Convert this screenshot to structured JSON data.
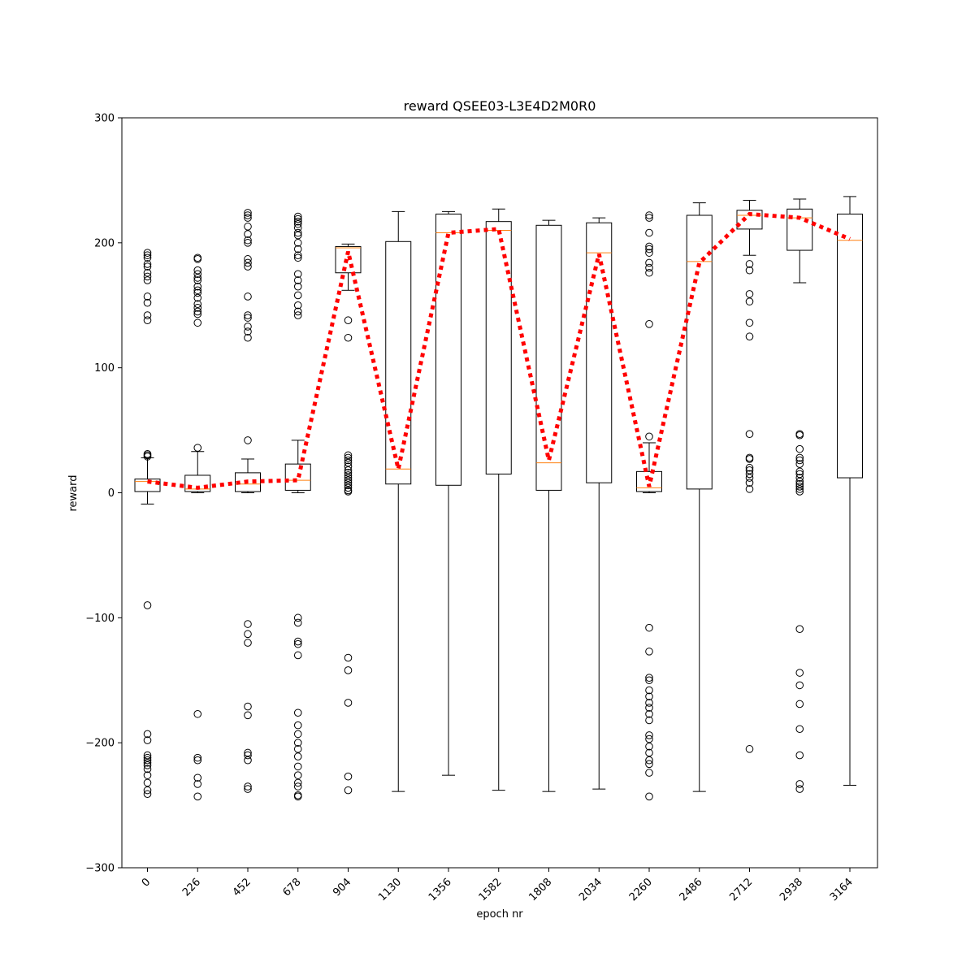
{
  "chart_data": {
    "type": "box",
    "title": "reward QSEE03-L3E4D2M0R0",
    "xlabel": "epoch nr",
    "ylabel": "reward",
    "ylim": [
      -300,
      300
    ],
    "yticks": [
      -300,
      -200,
      -100,
      0,
      100,
      200,
      300
    ],
    "ytick_labels": [
      "−300",
      "−200",
      "−100",
      "0",
      "100",
      "200",
      "300"
    ],
    "categories": [
      "0",
      "226",
      "452",
      "678",
      "904",
      "1130",
      "1356",
      "1582",
      "1808",
      "2034",
      "2260",
      "2486",
      "2712",
      "2938",
      "3164"
    ],
    "xtick_rotation_deg": -45,
    "grid": false,
    "colors": {
      "box": "#000000",
      "median": "#ff7f0e",
      "mean_line": "#ff0000"
    },
    "boxes": [
      {
        "category": "0",
        "whisker_low": -9,
        "q1": 1,
        "median": 9,
        "q3": 11,
        "whisker_high": 28,
        "fliers": [
          192,
          190,
          188,
          183,
          181,
          176,
          173,
          170,
          157,
          152,
          142,
          138,
          31,
          30,
          29,
          -90,
          -193,
          -198,
          -210,
          -212,
          -214,
          -216,
          -218,
          -221,
          -226,
          -232,
          -238,
          -241
        ]
      },
      {
        "category": "226",
        "whisker_low": 0,
        "q1": 1,
        "median": 3,
        "q3": 14,
        "whisker_high": 33,
        "fliers": [
          188,
          187,
          178,
          175,
          172,
          170,
          165,
          162,
          160,
          156,
          151,
          148,
          145,
          143,
          136,
          36,
          -177,
          -212,
          -214,
          -228,
          -233,
          -243
        ]
      },
      {
        "category": "452",
        "whisker_low": 0,
        "q1": 1,
        "median": 7,
        "q3": 16,
        "whisker_high": 27,
        "fliers": [
          224,
          222,
          220,
          213,
          207,
          202,
          200,
          187,
          184,
          181,
          157,
          142,
          140,
          133,
          129,
          124,
          42,
          -105,
          -113,
          -120,
          -171,
          -178,
          -208,
          -210,
          -214,
          -235,
          -237
        ]
      },
      {
        "category": "678",
        "whisker_low": 0,
        "q1": 2,
        "median": 10,
        "q3": 23,
        "whisker_high": 42,
        "fliers": [
          221,
          219,
          217,
          215,
          212,
          208,
          206,
          200,
          195,
          190,
          188,
          175,
          170,
          165,
          158,
          150,
          145,
          142,
          -100,
          -104,
          -119,
          -121,
          -130,
          -176,
          -186,
          -193,
          -200,
          -205,
          -211,
          -219,
          -226,
          -232,
          -235,
          -242,
          -243
        ]
      },
      {
        "category": "904",
        "whisker_low": 162,
        "q1": 176,
        "median": 196,
        "q3": 197,
        "whisker_high": 199,
        "fliers": [
          138,
          124,
          30,
          28,
          26,
          24,
          21,
          18,
          16,
          14,
          12,
          10,
          8,
          6,
          4,
          2,
          1,
          -132,
          -142,
          -168,
          -227,
          -238
        ]
      },
      {
        "category": "1130",
        "whisker_low": -239,
        "q1": 7,
        "median": 19,
        "q3": 201,
        "whisker_high": 225,
        "fliers": []
      },
      {
        "category": "1356",
        "whisker_low": -226,
        "q1": 6,
        "median": 208,
        "q3": 223,
        "whisker_high": 225,
        "fliers": []
      },
      {
        "category": "1582",
        "whisker_low": -238,
        "q1": 15,
        "median": 210,
        "q3": 217,
        "whisker_high": 227,
        "fliers": []
      },
      {
        "category": "1808",
        "whisker_low": -239,
        "q1": 2,
        "median": 24,
        "q3": 214,
        "whisker_high": 218,
        "fliers": []
      },
      {
        "category": "2034",
        "whisker_low": -237,
        "q1": 8,
        "median": 192,
        "q3": 216,
        "whisker_high": 220,
        "fliers": []
      },
      {
        "category": "2260",
        "whisker_low": 0,
        "q1": 1,
        "median": 4,
        "q3": 17,
        "whisker_high": 40,
        "fliers": [
          222,
          220,
          208,
          197,
          195,
          192,
          184,
          180,
          176,
          135,
          45,
          -108,
          -127,
          -148,
          -150,
          -158,
          -163,
          -168,
          -172,
          -177,
          -182,
          -194,
          -197,
          -203,
          -208,
          -214,
          -217,
          -224,
          -243
        ]
      },
      {
        "category": "2486",
        "whisker_low": -239,
        "q1": 3,
        "median": 185,
        "q3": 222,
        "whisker_high": 232,
        "fliers": []
      },
      {
        "category": "2712",
        "whisker_low": 190,
        "q1": 211,
        "median": 222,
        "q3": 226,
        "whisker_high": 234,
        "fliers": [
          183,
          178,
          159,
          153,
          136,
          125,
          47,
          28,
          27,
          20,
          18,
          15,
          12,
          8,
          3,
          -205
        ]
      },
      {
        "category": "2938",
        "whisker_low": 168,
        "q1": 194,
        "median": 220,
        "q3": 227,
        "whisker_high": 235,
        "fliers": [
          47,
          46,
          35,
          28,
          26,
          23,
          17,
          15,
          12,
          9,
          7,
          5,
          3,
          1,
          -109,
          -144,
          -154,
          -169,
          -189,
          -210,
          -233,
          -237
        ]
      },
      {
        "category": "3164",
        "whisker_low": -234,
        "q1": 12,
        "median": 202,
        "q3": 223,
        "whisker_high": 237,
        "fliers": []
      }
    ],
    "mean_line": {
      "style": "dotted",
      "x": [
        "0",
        "226",
        "452",
        "678",
        "904",
        "1130",
        "1356",
        "1582",
        "1808",
        "2034",
        "2260",
        "2486",
        "2712",
        "2938",
        "3164"
      ],
      "y": [
        9,
        4,
        9,
        10,
        193,
        19,
        208,
        211,
        26,
        191,
        5,
        184,
        223,
        220,
        203
      ]
    }
  }
}
